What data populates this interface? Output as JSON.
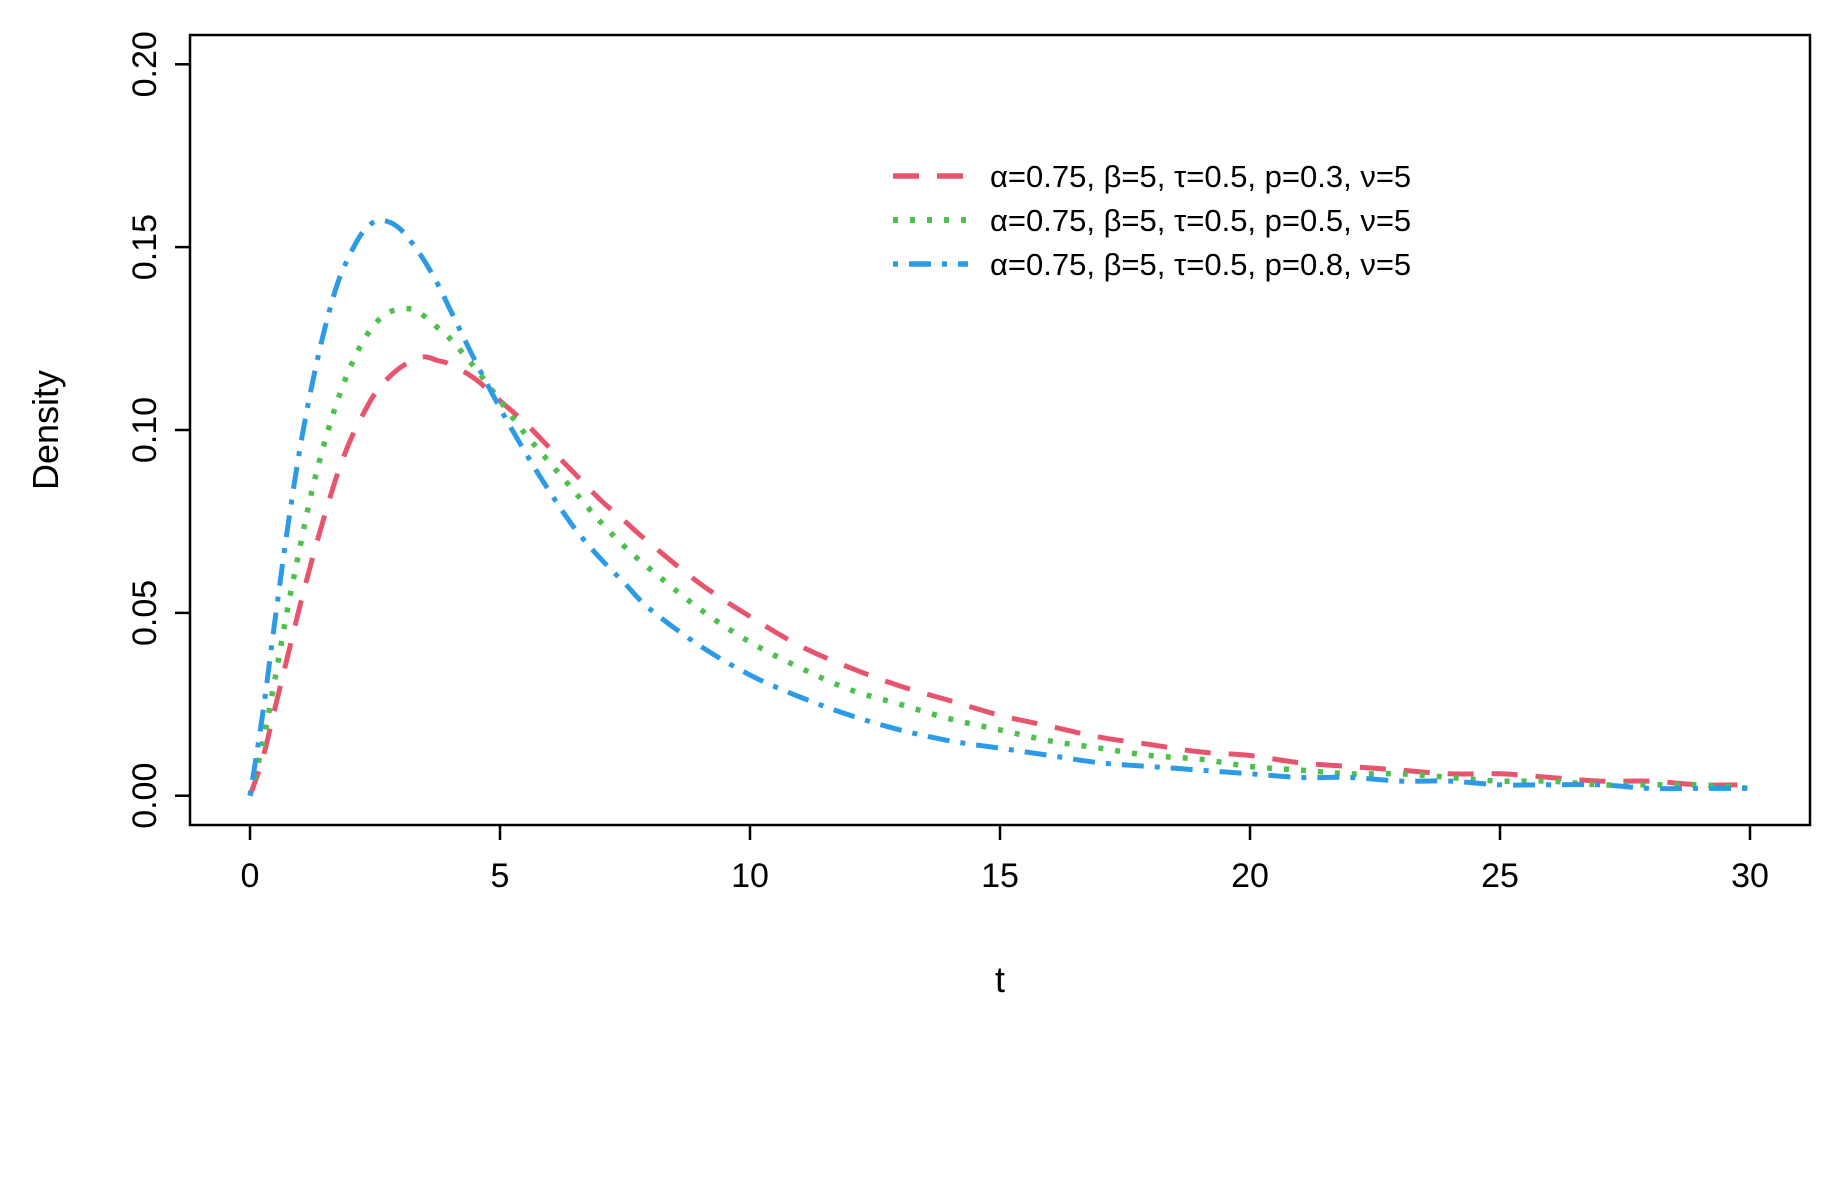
{
  "chart_data": {
    "type": "line",
    "title": "",
    "xlabel": "t",
    "ylabel": "Density",
    "xlim": [
      -1.2,
      31.2
    ],
    "ylim": [
      -0.008,
      0.208
    ],
    "grid": false,
    "legend": {
      "position": "top-right",
      "box": false
    },
    "x_ticks": [
      {
        "value": 0,
        "label": "0"
      },
      {
        "value": 5,
        "label": "5"
      },
      {
        "value": 10,
        "label": "10"
      },
      {
        "value": 15,
        "label": "15"
      },
      {
        "value": 20,
        "label": "20"
      },
      {
        "value": 25,
        "label": "25"
      },
      {
        "value": 30,
        "label": "30"
      }
    ],
    "y_ticks": [
      {
        "value": 0.0,
        "label": "0.00"
      },
      {
        "value": 0.05,
        "label": "0.05"
      },
      {
        "value": 0.1,
        "label": "0.10"
      },
      {
        "value": 0.15,
        "label": "0.15"
      },
      {
        "value": 0.2,
        "label": "0.20"
      }
    ],
    "x": [
      0,
      0.25,
      0.5,
      0.75,
      1,
      1.25,
      1.5,
      1.75,
      2,
      2.25,
      2.5,
      2.75,
      3,
      3.25,
      3.5,
      3.75,
      4,
      4.5,
      5,
      5.5,
      6,
      6.5,
      7,
      7.5,
      8,
      9,
      10,
      11,
      12,
      13,
      14,
      15,
      16,
      17,
      18,
      19,
      20,
      21,
      22,
      23,
      24,
      25,
      26,
      27,
      28,
      29,
      30
    ],
    "series": [
      {
        "name": "α=0.75, β=5, τ=0.5, p=0.3, ν=5",
        "color": "#E8546E",
        "linestyle": "dashed",
        "dash": "26 18",
        "width": 5,
        "peak": {
          "t": 3.4,
          "density": 0.12
        },
        "values": [
          0.0,
          0.01,
          0.024,
          0.038,
          0.052,
          0.065,
          0.077,
          0.088,
          0.097,
          0.104,
          0.11,
          0.114,
          0.117,
          0.119,
          0.12,
          0.119,
          0.118,
          0.114,
          0.108,
          0.102,
          0.095,
          0.088,
          0.081,
          0.075,
          0.069,
          0.058,
          0.049,
          0.041,
          0.035,
          0.03,
          0.026,
          0.022,
          0.019,
          0.016,
          0.014,
          0.012,
          0.011,
          0.009,
          0.008,
          0.007,
          0.006,
          0.006,
          0.005,
          0.004,
          0.004,
          0.003,
          0.003
        ]
      },
      {
        "name": "α=0.75, β=5, τ=0.5, p=0.5, ν=5",
        "color": "#4DC04D",
        "linestyle": "dotted",
        "dash": "5 12",
        "width": 5.5,
        "peak": {
          "t": 3.0,
          "density": 0.133
        },
        "values": [
          0.0,
          0.014,
          0.032,
          0.051,
          0.068,
          0.084,
          0.097,
          0.108,
          0.117,
          0.124,
          0.129,
          0.132,
          0.133,
          0.133,
          0.131,
          0.128,
          0.125,
          0.117,
          0.108,
          0.099,
          0.091,
          0.083,
          0.075,
          0.068,
          0.062,
          0.051,
          0.042,
          0.035,
          0.029,
          0.025,
          0.021,
          0.018,
          0.015,
          0.013,
          0.011,
          0.01,
          0.008,
          0.007,
          0.006,
          0.006,
          0.005,
          0.004,
          0.004,
          0.003,
          0.003,
          0.003,
          0.002
        ]
      },
      {
        "name": "α=0.75, β=5, τ=0.5, p=0.8, ν=5",
        "color": "#2B9BE8",
        "linestyle": "dash-dot",
        "dash": "5 11 22 11",
        "width": 5,
        "peak": {
          "t": 2.6,
          "density": 0.157
        },
        "values": [
          0.0,
          0.022,
          0.048,
          0.073,
          0.095,
          0.113,
          0.128,
          0.14,
          0.148,
          0.154,
          0.157,
          0.157,
          0.155,
          0.151,
          0.146,
          0.14,
          0.133,
          0.119,
          0.106,
          0.094,
          0.083,
          0.073,
          0.065,
          0.058,
          0.051,
          0.041,
          0.033,
          0.027,
          0.022,
          0.018,
          0.015,
          0.013,
          0.011,
          0.009,
          0.008,
          0.007,
          0.006,
          0.005,
          0.005,
          0.004,
          0.004,
          0.003,
          0.003,
          0.003,
          0.002,
          0.002,
          0.002
        ]
      }
    ]
  }
}
